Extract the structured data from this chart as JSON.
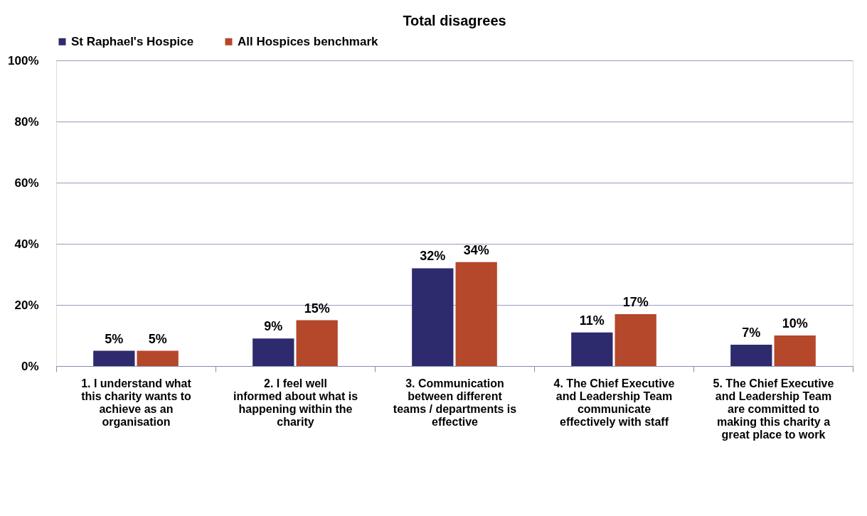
{
  "chart_data": {
    "type": "bar",
    "title": "Total disagrees",
    "categories": [
      "1. I understand what this charity wants to achieve as an organisation",
      "2. I feel well informed about what is happening within the charity",
      "3. Communication between different teams / departments is effective",
      "4. The Chief Executive and Leadership Team communicate effectively with staff",
      "5. The Chief Executive and Leadership Team are committed to making this charity a great place to work"
    ],
    "series": [
      {
        "name": "St Raphael's Hospice",
        "color": "#2e2a6e",
        "values": [
          5,
          9,
          32,
          11,
          7
        ],
        "value_labels": [
          "5%",
          "9%",
          "32%",
          "11%",
          "7%"
        ]
      },
      {
        "name": "All Hospices benchmark",
        "color": "#b5472a",
        "values": [
          5,
          15,
          34,
          17,
          10
        ],
        "value_labels": [
          "5%",
          "15%",
          "34%",
          "17%",
          "10%"
        ]
      }
    ],
    "ylim": [
      0,
      100
    ],
    "yticks": [
      {
        "value": 0,
        "label": "0%"
      },
      {
        "value": 20,
        "label": "20%"
      },
      {
        "value": 40,
        "label": "40%"
      },
      {
        "value": 60,
        "label": "60%"
      },
      {
        "value": 80,
        "label": "80%"
      },
      {
        "value": 100,
        "label": "100%"
      }
    ],
    "grid": "y",
    "legend": "top"
  }
}
